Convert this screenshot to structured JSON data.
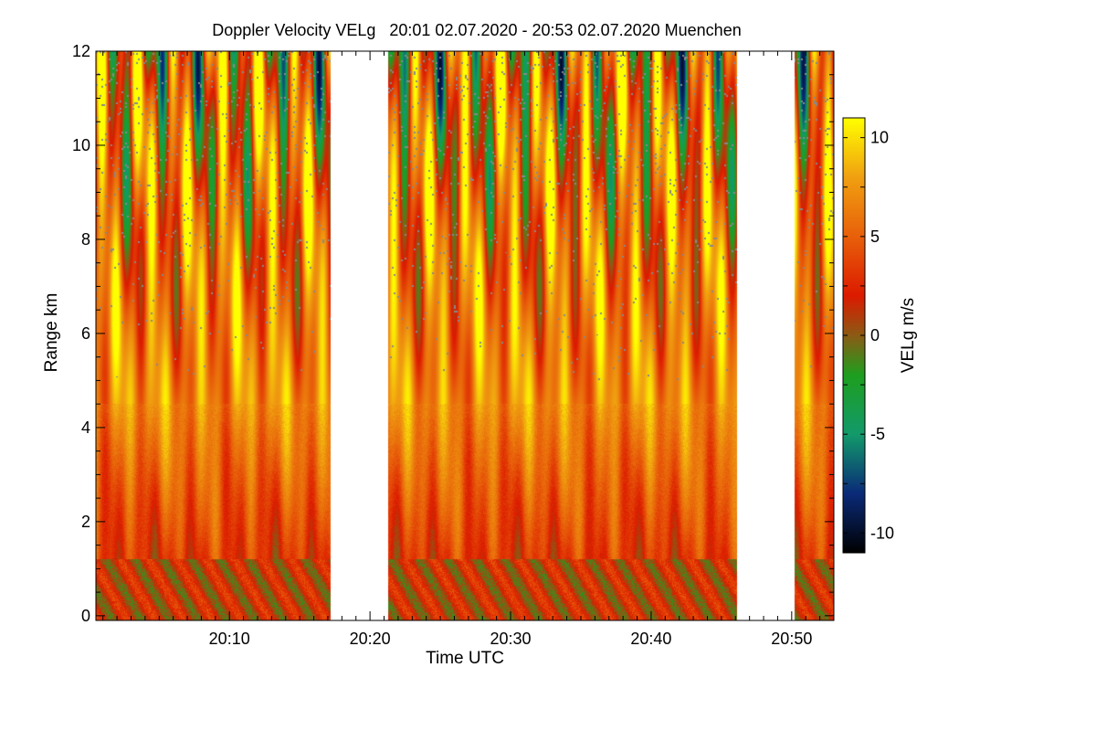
{
  "chart_data": {
    "type": "heatmap",
    "title": "Doppler Velocity VELg   20:01 02.07.2020 - 20:53 02.07.2020 Muenchen",
    "xlabel": "Time UTC",
    "ylabel": "Range km",
    "colorbar_label": "VELg m/s",
    "x_range_minutes": [
      0.5,
      53
    ],
    "y_range_km": [
      -0.1,
      12
    ],
    "x_ticks": [
      {
        "minute": 10,
        "label": "20:10"
      },
      {
        "minute": 20,
        "label": "20:20"
      },
      {
        "minute": 30,
        "label": "20:30"
      },
      {
        "minute": 40,
        "label": "20:40"
      },
      {
        "minute": 50,
        "label": "20:50"
      }
    ],
    "y_ticks": [
      {
        "km": 0,
        "label": "0"
      },
      {
        "km": 2,
        "label": "2"
      },
      {
        "km": 4,
        "label": "4"
      },
      {
        "km": 6,
        "label": "6"
      },
      {
        "km": 8,
        "label": "8"
      },
      {
        "km": 10,
        "label": "10"
      },
      {
        "km": 12,
        "label": "12"
      }
    ],
    "colorbar_range": [
      -11,
      11
    ],
    "colorbar_ticks": [
      {
        "value": 10,
        "label": "10"
      },
      {
        "value": 5,
        "label": "5"
      },
      {
        "value": 0,
        "label": "0"
      },
      {
        "value": -5,
        "label": "-5"
      },
      {
        "value": -10,
        "label": "-10"
      }
    ],
    "colormap": [
      {
        "value": -11,
        "color": "#000000"
      },
      {
        "value": -8,
        "color": "#0a2a78"
      },
      {
        "value": -5,
        "color": "#129a6a"
      },
      {
        "value": -2,
        "color": "#1e9e1e"
      },
      {
        "value": 0,
        "color": "#8b5a14"
      },
      {
        "value": 2,
        "color": "#dc1a00"
      },
      {
        "value": 5,
        "color": "#e8600a"
      },
      {
        "value": 8,
        "color": "#f0a010"
      },
      {
        "value": 11,
        "color": "#ffff00"
      }
    ],
    "data_segments_minutes": [
      {
        "start": 0.5,
        "end": 17.2
      },
      {
        "start": 21.3,
        "end": 46.1
      },
      {
        "start": 50.2,
        "end": 53.0
      }
    ],
    "missing_color": "#888888"
  }
}
